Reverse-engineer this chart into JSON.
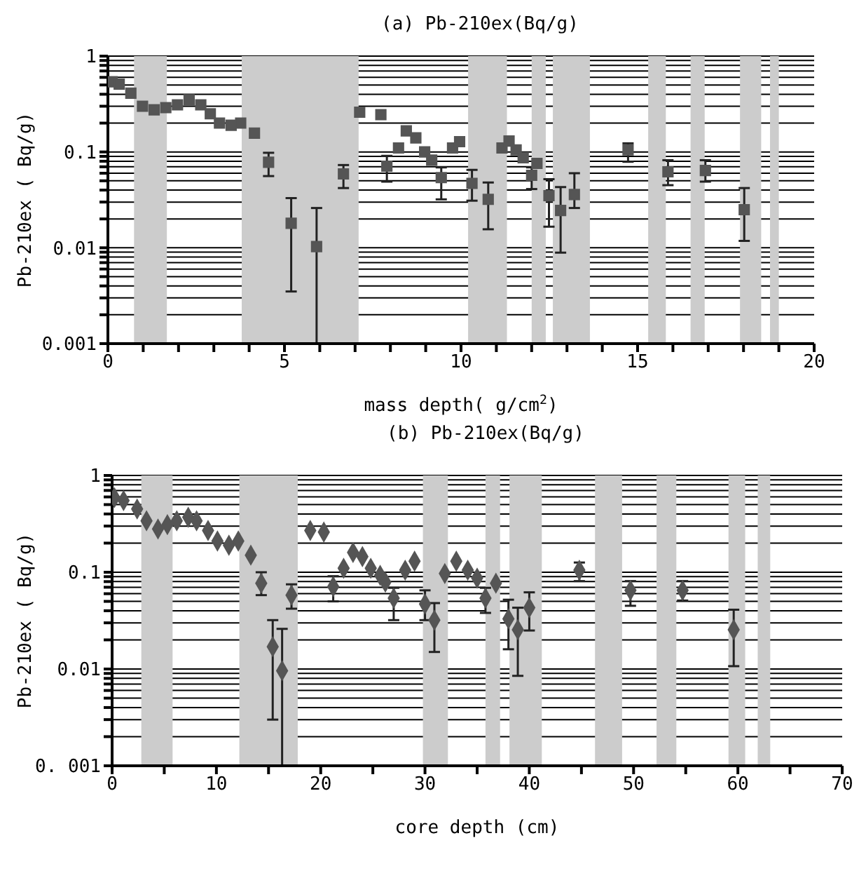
{
  "chart_data": [
    {
      "type": "scatter",
      "title": "(a) Pb-210ex(Bq/g)",
      "xlabel": "mass depth( g/cm$^{2}$)",
      "ylabel": "Pb-210ex ( Bq/g)",
      "log": "y",
      "grid": "y",
      "marker": "square",
      "xlim": [
        0,
        20
      ],
      "xticks": [
        0,
        {
          "value": 1,
          "label": null
        },
        {
          "value": 2,
          "label": null
        },
        {
          "value": 3,
          "label": null
        },
        {
          "value": 4,
          "label": null
        },
        5,
        {
          "value": 6,
          "label": null
        },
        {
          "value": 7,
          "label": null
        },
        {
          "value": 8,
          "label": null
        },
        {
          "value": 9,
          "label": null
        },
        10,
        {
          "value": 11,
          "label": null
        },
        {
          "value": 12,
          "label": null
        },
        {
          "value": 13,
          "label": null
        },
        {
          "value": 14,
          "label": null
        },
        15,
        {
          "value": 16,
          "label": null
        },
        {
          "value": 17,
          "label": null
        },
        {
          "value": 18,
          "label": null
        },
        {
          "value": 19,
          "label": null
        },
        20
      ],
      "ylim": [
        0.001,
        1
      ],
      "yticks": [
        {
          "value": 0.001,
          "label": "0.001"
        },
        {
          "value": 0.002,
          "label": null
        },
        {
          "value": 0.003,
          "label": null
        },
        {
          "value": 0.004,
          "label": null
        },
        {
          "value": 0.005,
          "label": null
        },
        {
          "value": 0.006,
          "label": null
        },
        {
          "value": 0.007,
          "label": null
        },
        {
          "value": 0.008,
          "label": null
        },
        {
          "value": 0.009,
          "label": null
        },
        {
          "value": 0.01,
          "label": "0.01"
        },
        {
          "value": 0.02,
          "label": null
        },
        {
          "value": 0.03,
          "label": null
        },
        {
          "value": 0.04,
          "label": null
        },
        {
          "value": 0.05,
          "label": null
        },
        {
          "value": 0.06,
          "label": null
        },
        {
          "value": 0.07,
          "label": null
        },
        {
          "value": 0.08,
          "label": null
        },
        {
          "value": 0.09,
          "label": null
        },
        {
          "value": 0.1,
          "label": "0.1"
        },
        {
          "value": 0.2,
          "label": null
        },
        {
          "value": 0.3,
          "label": null
        },
        {
          "value": 0.4,
          "label": null
        },
        {
          "value": 0.5,
          "label": null
        },
        {
          "value": 0.6,
          "label": null
        },
        {
          "value": 0.7,
          "label": null
        },
        {
          "value": 0.8,
          "label": null
        },
        {
          "value": 0.9,
          "label": null
        },
        1
      ],
      "bands": [
        {
          "axis": "x",
          "from": 0.74,
          "to": 1.67,
          "color": "#cccccc"
        },
        {
          "axis": "x",
          "from": 3.79,
          "to": 7.1,
          "color": "#cccccc"
        },
        {
          "axis": "x",
          "from": 10.2,
          "to": 11.3,
          "color": "#cccccc"
        },
        {
          "axis": "x",
          "from": 12.0,
          "to": 12.4,
          "color": "#cccccc"
        },
        {
          "axis": "x",
          "from": 12.6,
          "to": 13.65,
          "color": "#cccccc"
        },
        {
          "axis": "x",
          "from": 15.3,
          "to": 15.8,
          "color": "#cccccc"
        },
        {
          "axis": "x",
          "from": 16.5,
          "to": 16.9,
          "color": "#cccccc"
        },
        {
          "axis": "x",
          "from": 17.9,
          "to": 18.5,
          "color": "#cccccc"
        },
        {
          "axis": "x",
          "from": 18.75,
          "to": 19.0,
          "color": "#cccccc"
        }
      ],
      "series": [
        {
          "color": "#555555",
          "x": [
            0.12,
            0.32,
            0.65,
            0.98,
            1.31,
            1.64,
            1.97,
            2.3,
            2.63,
            2.9,
            3.16,
            3.49,
            3.76,
            4.15,
            4.55,
            5.19,
            5.91,
            6.67,
            7.13,
            7.73,
            7.9,
            8.23,
            8.45,
            8.72,
            8.97,
            9.17,
            9.44,
            9.76,
            9.96,
            10.31,
            10.77,
            11.16,
            11.36,
            11.56,
            11.76,
            12.0,
            12.15,
            12.49,
            12.82,
            13.21,
            14.73,
            15.86,
            16.92,
            18.02
          ],
          "values": [
            0.54,
            0.51,
            0.41,
            0.3,
            0.275,
            0.29,
            0.31,
            0.35,
            0.31,
            0.25,
            0.2,
            0.19,
            0.2,
            0.157,
            0.078,
            0.018,
            0.0103,
            0.059,
            0.26,
            0.245,
            0.071,
            0.11,
            0.166,
            0.14,
            0.1,
            0.082,
            0.054,
            0.11,
            0.128,
            0.047,
            0.032,
            0.11,
            0.13,
            0.105,
            0.087,
            0.057,
            0.076,
            0.035,
            0.0245,
            0.036,
            0.105,
            0.062,
            0.064,
            0.025
          ],
          "errors": [
            null,
            null,
            null,
            null,
            null,
            null,
            null,
            null,
            null,
            null,
            null,
            null,
            null,
            null,
            [
              0.056,
              0.098
            ],
            [
              0.0035,
              0.033
            ],
            [
              0.001,
              0.026
            ],
            [
              0.042,
              0.073
            ],
            null,
            null,
            [
              0.049,
              0.091
            ],
            null,
            null,
            null,
            null,
            null,
            [
              0.032,
              0.069
            ],
            null,
            null,
            [
              0.031,
              0.065
            ],
            [
              0.0156,
              0.048
            ],
            null,
            null,
            null,
            null,
            [
              0.041,
              0.069
            ],
            null,
            [
              0.0166,
              0.052
            ],
            [
              0.0089,
              0.043
            ],
            [
              0.026,
              0.06
            ],
            [
              0.079,
              0.123
            ],
            [
              0.045,
              0.082
            ],
            [
              0.049,
              0.082
            ],
            [
              0.0118,
              0.042
            ]
          ]
        }
      ]
    },
    {
      "type": "scatter",
      "title": "(b) Pb-210ex(Bq/g)",
      "xlabel": "core depth (cm)",
      "ylabel": "Pb-210ex ( Bq/g)",
      "log": "y",
      "grid": "y",
      "marker": "diamond",
      "xlim": [
        0,
        70
      ],
      "xticks": [
        0,
        {
          "value": 5,
          "label": null
        },
        10,
        {
          "value": 15,
          "label": null
        },
        20,
        {
          "value": 25,
          "label": null
        },
        30,
        {
          "value": 35,
          "label": null
        },
        40,
        {
          "value": 45,
          "label": null
        },
        50,
        {
          "value": 55,
          "label": null
        },
        60,
        {
          "value": 65,
          "label": null
        },
        70
      ],
      "ylim": [
        0.001,
        1
      ],
      "yticks": [
        {
          "value": 0.001,
          "label": "0. 001"
        },
        {
          "value": 0.002,
          "label": null
        },
        {
          "value": 0.003,
          "label": null
        },
        {
          "value": 0.004,
          "label": null
        },
        {
          "value": 0.005,
          "label": null
        },
        {
          "value": 0.006,
          "label": null
        },
        {
          "value": 0.007,
          "label": null
        },
        {
          "value": 0.008,
          "label": null
        },
        {
          "value": 0.009,
          "label": null
        },
        {
          "value": 0.01,
          "label": "0.01"
        },
        {
          "value": 0.02,
          "label": null
        },
        {
          "value": 0.03,
          "label": null
        },
        {
          "value": 0.04,
          "label": null
        },
        {
          "value": 0.05,
          "label": null
        },
        {
          "value": 0.06,
          "label": null
        },
        {
          "value": 0.07,
          "label": null
        },
        {
          "value": 0.08,
          "label": null
        },
        {
          "value": 0.09,
          "label": null
        },
        {
          "value": 0.1,
          "label": "0.1"
        },
        {
          "value": 0.2,
          "label": null
        },
        {
          "value": 0.3,
          "label": null
        },
        {
          "value": 0.4,
          "label": null
        },
        {
          "value": 0.5,
          "label": null
        },
        {
          "value": 0.6,
          "label": null
        },
        {
          "value": 0.7,
          "label": null
        },
        {
          "value": 0.8,
          "label": null
        },
        {
          "value": 0.9,
          "label": null
        },
        1
      ],
      "bands": [
        {
          "axis": "x",
          "from": 2.8,
          "to": 5.8,
          "color": "#cccccc"
        },
        {
          "axis": "x",
          "from": 12.2,
          "to": 17.8,
          "color": "#cccccc"
        },
        {
          "axis": "x",
          "from": 29.8,
          "to": 32.2,
          "color": "#cccccc"
        },
        {
          "axis": "x",
          "from": 35.8,
          "to": 37.2,
          "color": "#cccccc"
        },
        {
          "axis": "x",
          "from": 38.1,
          "to": 41.2,
          "color": "#cccccc"
        },
        {
          "axis": "x",
          "from": 46.3,
          "to": 48.9,
          "color": "#cccccc"
        },
        {
          "axis": "x",
          "from": 52.2,
          "to": 54.1,
          "color": "#cccccc"
        },
        {
          "axis": "x",
          "from": 59.1,
          "to": 60.7,
          "color": "#cccccc"
        },
        {
          "axis": "x",
          "from": 61.9,
          "to": 63.1,
          "color": "#cccccc"
        }
      ],
      "series": [
        {
          "color": "#555555",
          "x": [
            0.22,
            1.1,
            2.4,
            3.3,
            4.4,
            5.3,
            6.2,
            7.3,
            8.1,
            9.2,
            10.1,
            11.2,
            12.1,
            13.3,
            14.3,
            15.4,
            16.3,
            17.2,
            19.0,
            20.3,
            21.2,
            22.2,
            23.1,
            24.0,
            24.8,
            25.7,
            26.2,
            27.0,
            28.1,
            29.0,
            30.0,
            30.9,
            31.9,
            33.0,
            34.1,
            35.0,
            35.8,
            36.8,
            38.0,
            38.9,
            40.0,
            44.8,
            49.7,
            54.7,
            59.6
          ],
          "values": [
            0.59,
            0.55,
            0.45,
            0.34,
            0.28,
            0.31,
            0.34,
            0.37,
            0.34,
            0.27,
            0.21,
            0.19,
            0.21,
            0.15,
            0.077,
            0.017,
            0.0096,
            0.058,
            0.27,
            0.26,
            0.071,
            0.11,
            0.16,
            0.145,
            0.11,
            0.093,
            0.079,
            0.054,
            0.105,
            0.13,
            0.047,
            0.032,
            0.097,
            0.13,
            0.105,
            0.087,
            0.054,
            0.077,
            0.033,
            0.0255,
            0.043,
            0.105,
            0.065,
            0.065,
            0.0255
          ],
          "errors": [
            null,
            null,
            null,
            null,
            null,
            null,
            null,
            null,
            null,
            null,
            null,
            null,
            null,
            null,
            [
              0.058,
              0.1
            ],
            [
              0.003,
              0.032
            ],
            [
              0.001,
              0.026
            ],
            [
              0.042,
              0.075
            ],
            null,
            null,
            [
              0.05,
              0.091
            ],
            null,
            null,
            null,
            null,
            null,
            null,
            [
              0.032,
              0.069
            ],
            null,
            null,
            [
              0.032,
              0.065
            ],
            [
              0.015,
              0.048
            ],
            null,
            null,
            null,
            null,
            [
              0.038,
              0.069
            ],
            null,
            [
              0.016,
              0.052
            ],
            [
              0.0085,
              0.043
            ],
            [
              0.025,
              0.062
            ],
            [
              0.081,
              0.126
            ],
            [
              0.045,
              0.081
            ],
            [
              0.051,
              0.081
            ],
            [
              0.0107,
              0.041
            ]
          ]
        }
      ]
    }
  ]
}
